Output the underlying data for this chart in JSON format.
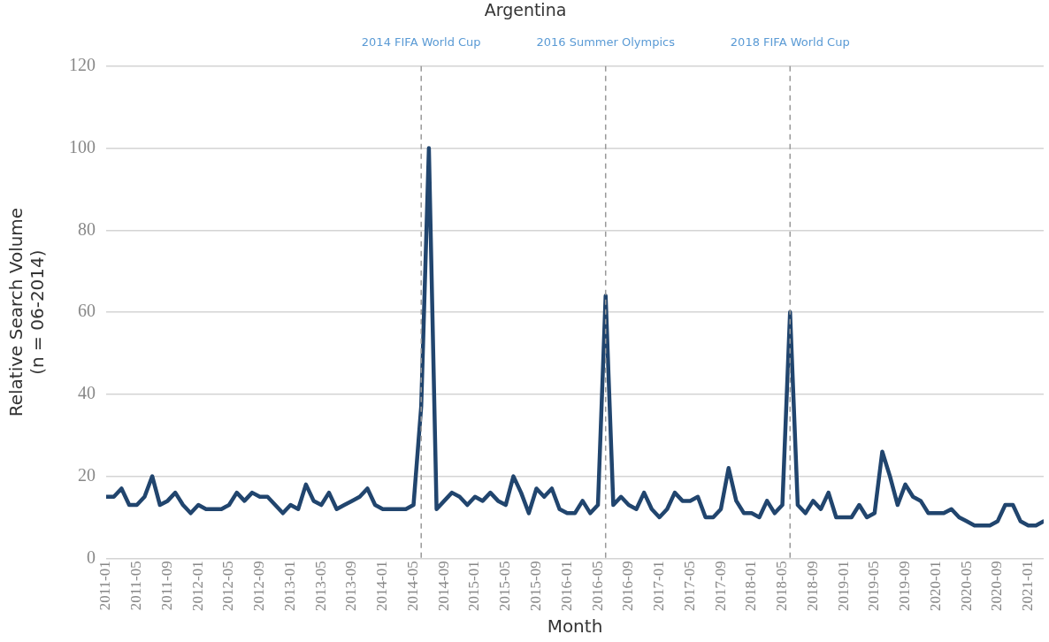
{
  "chart_data": {
    "type": "line",
    "title": "Argentina",
    "xlabel": "Month",
    "ylabel": "Relative Search Volume\n(n = 06-2014)",
    "x": [
      "2011-01",
      "2011-02",
      "2011-03",
      "2011-04",
      "2011-05",
      "2011-06",
      "2011-07",
      "2011-08",
      "2011-09",
      "2011-10",
      "2011-11",
      "2011-12",
      "2012-01",
      "2012-02",
      "2012-03",
      "2012-04",
      "2012-05",
      "2012-06",
      "2012-07",
      "2012-08",
      "2012-09",
      "2012-10",
      "2012-11",
      "2012-12",
      "2013-01",
      "2013-02",
      "2013-03",
      "2013-04",
      "2013-05",
      "2013-06",
      "2013-07",
      "2013-08",
      "2013-09",
      "2013-10",
      "2013-11",
      "2013-12",
      "2014-01",
      "2014-02",
      "2014-03",
      "2014-04",
      "2014-05",
      "2014-06",
      "2014-07",
      "2014-08",
      "2014-09",
      "2014-10",
      "2014-11",
      "2014-12",
      "2015-01",
      "2015-02",
      "2015-03",
      "2015-04",
      "2015-05",
      "2015-06",
      "2015-07",
      "2015-08",
      "2015-09",
      "2015-10",
      "2015-11",
      "2015-12",
      "2016-01",
      "2016-02",
      "2016-03",
      "2016-04",
      "2016-05",
      "2016-06",
      "2016-07",
      "2016-08",
      "2016-09",
      "2016-10",
      "2016-11",
      "2016-12",
      "2017-01",
      "2017-02",
      "2017-03",
      "2017-04",
      "2017-05",
      "2017-06",
      "2017-07",
      "2017-08",
      "2017-09",
      "2017-10",
      "2017-11",
      "2017-12",
      "2018-01",
      "2018-02",
      "2018-03",
      "2018-04",
      "2018-05",
      "2018-06",
      "2018-07",
      "2018-08",
      "2018-09",
      "2018-10",
      "2018-11",
      "2018-12",
      "2019-01",
      "2019-02",
      "2019-03",
      "2019-04",
      "2019-05",
      "2019-06",
      "2019-07",
      "2019-08",
      "2019-09",
      "2019-10",
      "2019-11",
      "2019-12",
      "2020-01",
      "2020-02",
      "2020-03",
      "2020-04",
      "2020-05",
      "2020-06",
      "2020-07",
      "2020-08",
      "2020-09",
      "2020-10",
      "2020-11",
      "2020-12",
      "2021-01",
      "2021-02",
      "2021-03"
    ],
    "series": [
      {
        "color": "#21456e",
        "values": [
          15,
          15,
          17,
          13,
          13,
          15,
          20,
          13,
          14,
          16,
          13,
          11,
          13,
          12,
          12,
          12,
          13,
          16,
          14,
          16,
          15,
          15,
          13,
          11,
          13,
          12,
          18,
          14,
          13,
          16,
          12,
          13,
          14,
          15,
          17,
          13,
          12,
          12,
          12,
          12,
          13,
          37,
          100,
          12,
          14,
          16,
          15,
          13,
          15,
          14,
          16,
          14,
          13,
          20,
          16,
          11,
          17,
          15,
          17,
          12,
          11,
          11,
          14,
          11,
          13,
          64,
          13,
          15,
          13,
          12,
          16,
          12,
          10,
          12,
          16,
          14,
          14,
          15,
          10,
          10,
          12,
          22,
          14,
          11,
          11,
          10,
          14,
          11,
          13,
          60,
          13,
          11,
          14,
          12,
          16,
          10,
          10,
          10,
          13,
          10,
          11,
          26,
          20,
          13,
          18,
          15,
          14,
          11,
          11,
          11,
          12,
          10,
          9,
          8,
          8,
          8,
          9,
          13,
          13,
          9,
          8,
          8,
          9
        ]
      }
    ],
    "xlim": [
      "2011-01",
      "2021-03"
    ],
    "xticks": [
      "2011-01",
      "2011-05",
      "2011-09",
      "2012-01",
      "2012-05",
      "2012-09",
      "2013-01",
      "2013-05",
      "2013-09",
      "2014-01",
      "2014-05",
      "2014-09",
      "2015-01",
      "2015-05",
      "2015-09",
      "2016-01",
      "2016-05",
      "2016-09",
      "2017-01",
      "2017-05",
      "2017-09",
      "2018-01",
      "2018-05",
      "2018-09",
      "2019-01",
      "2019-05",
      "2019-09",
      "2020-01",
      "2020-05",
      "2020-09",
      "2021-01"
    ],
    "ylim": [
      0,
      120
    ],
    "yticks": [
      0,
      20,
      40,
      60,
      80,
      100,
      120
    ],
    "grid": "y",
    "legend": false,
    "marker": "none",
    "line_style": "solid",
    "ref_lines": [
      {
        "axis": "x",
        "value": "2014-06",
        "label": "2014 FIFA World Cup",
        "color": "#999999",
        "line_style": "dashed"
      },
      {
        "axis": "x",
        "value": "2016-06",
        "label": "2016 Summer Olympics",
        "color": "#999999",
        "line_style": "dashed"
      },
      {
        "axis": "x",
        "value": "2018-06",
        "label": "2018 FIFA World Cup",
        "color": "#999999",
        "line_style": "dashed"
      }
    ]
  }
}
